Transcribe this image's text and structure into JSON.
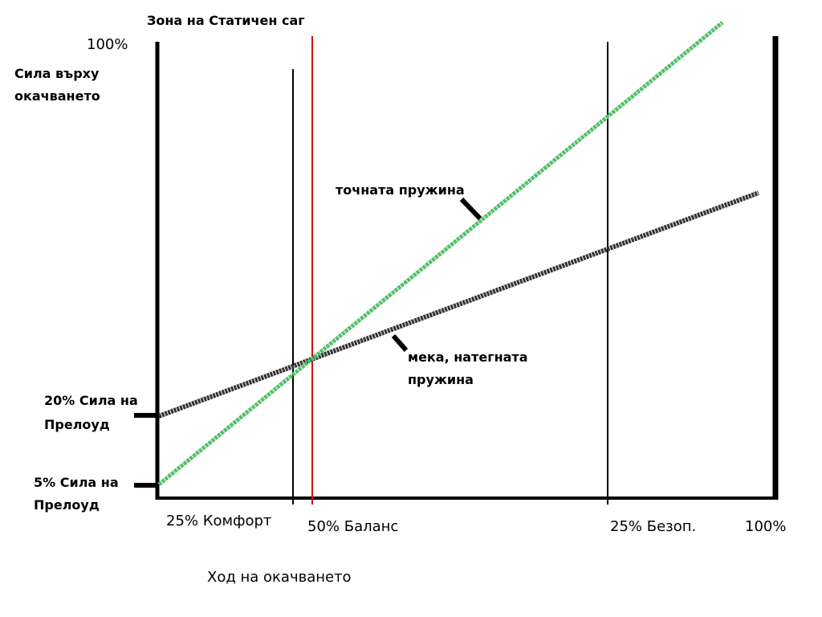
{
  "header": {
    "title": "Зона на Статичен саг"
  },
  "y_axis": {
    "top_label": "100%",
    "title": [
      "Сила върху",
      "окачването"
    ],
    "preload_high": [
      "20% Сила на",
      "Прелоуд"
    ],
    "preload_low": [
      "5% Сила на",
      "Прелоуд"
    ]
  },
  "x_axis": {
    "zones": [
      "25% Комфорт",
      "50% Баланс",
      "25% Безоп.",
      "100%"
    ],
    "title": "Ход на окачването"
  },
  "lines": {
    "linear_spring": "точната пружина",
    "soft_spring": [
      "мека, натегната",
      "пружина"
    ]
  }
}
